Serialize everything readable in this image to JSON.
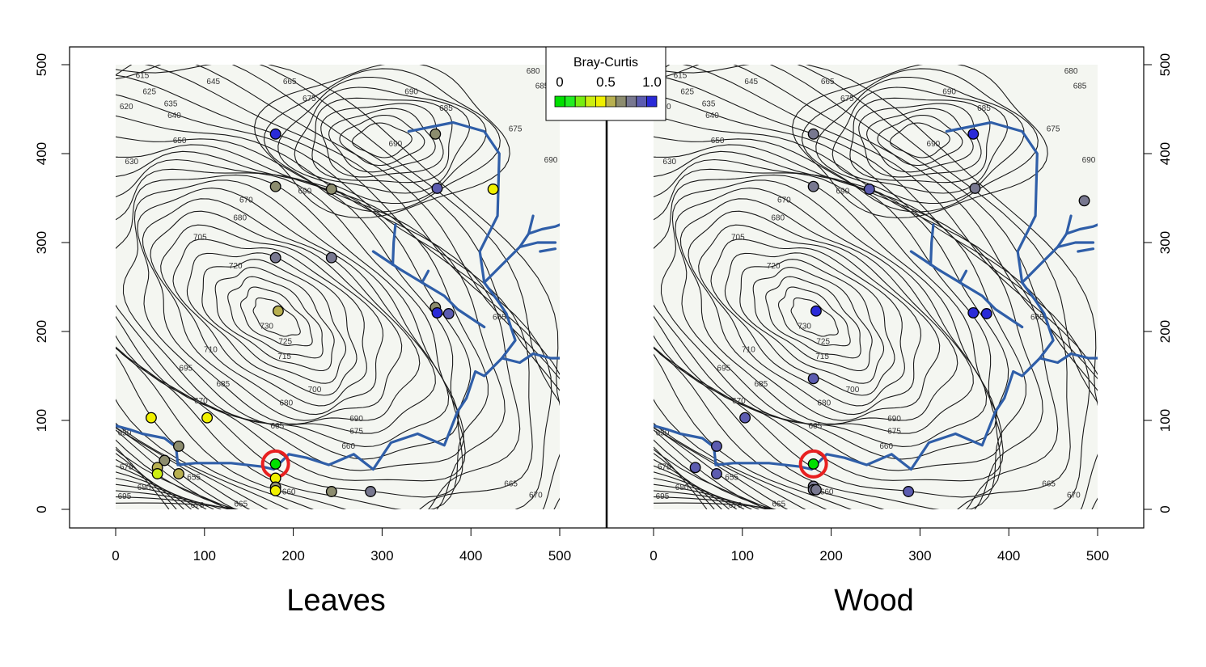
{
  "chart_data": {
    "type": "scatter",
    "xlim": [
      0,
      500
    ],
    "ylim": [
      0,
      500
    ],
    "x_ticks": [
      0,
      100,
      200,
      300,
      400,
      500
    ],
    "y_ticks": [
      0,
      100,
      200,
      300,
      400,
      500
    ],
    "legend": {
      "title": "Bray-Curtis",
      "placement": "top-center",
      "tick_labels": [
        "0",
        "0.5",
        "1.0"
      ],
      "scale_colors": [
        "#00e000",
        "#22ee22",
        "#77ee11",
        "#ccee11",
        "#f0f000",
        "#b8b050",
        "#8c8c6e",
        "#787890",
        "#5c5cb0",
        "#2a2ad8"
      ]
    },
    "highlight": {
      "x": 180,
      "y": 51,
      "ring_color": "#e82020"
    },
    "background_color": "#f4f6f1",
    "stream_color": "#2f5ea8",
    "panels": [
      {
        "title": "Leaves",
        "points": [
          {
            "x": 180,
            "y": 422,
            "v": 0.95
          },
          {
            "x": 360,
            "y": 422,
            "v": 0.6
          },
          {
            "x": 180,
            "y": 363,
            "v": 0.62
          },
          {
            "x": 243,
            "y": 360,
            "v": 0.66
          },
          {
            "x": 362,
            "y": 361,
            "v": 0.88
          },
          {
            "x": 425,
            "y": 360,
            "v": 0.45
          },
          {
            "x": 180,
            "y": 283,
            "v": 0.72
          },
          {
            "x": 243,
            "y": 283,
            "v": 0.78
          },
          {
            "x": 183,
            "y": 223,
            "v": 0.57
          },
          {
            "x": 360,
            "y": 227,
            "v": 0.62
          },
          {
            "x": 362,
            "y": 221,
            "v": 0.92
          },
          {
            "x": 375,
            "y": 220,
            "v": 0.86
          },
          {
            "x": 40,
            "y": 103,
            "v": 0.46
          },
          {
            "x": 103,
            "y": 103,
            "v": 0.46
          },
          {
            "x": 71,
            "y": 71,
            "v": 0.63
          },
          {
            "x": 55,
            "y": 55,
            "v": 0.62
          },
          {
            "x": 47,
            "y": 47,
            "v": 0.58
          },
          {
            "x": 47,
            "y": 40,
            "v": 0.33
          },
          {
            "x": 71,
            "y": 40,
            "v": 0.57
          },
          {
            "x": 180,
            "y": 51,
            "v": 0.05
          },
          {
            "x": 180,
            "y": 35,
            "v": 0.4
          },
          {
            "x": 180,
            "y": 25,
            "v": 0.6
          },
          {
            "x": 180,
            "y": 21,
            "v": 0.47
          },
          {
            "x": 243,
            "y": 20,
            "v": 0.66
          },
          {
            "x": 287,
            "y": 20,
            "v": 0.78
          }
        ]
      },
      {
        "title": "Wood",
        "points": [
          {
            "x": 180,
            "y": 422,
            "v": 0.78
          },
          {
            "x": 360,
            "y": 422,
            "v": 0.95
          },
          {
            "x": 180,
            "y": 363,
            "v": 0.76
          },
          {
            "x": 243,
            "y": 360,
            "v": 0.86
          },
          {
            "x": 362,
            "y": 361,
            "v": 0.78
          },
          {
            "x": 485,
            "y": 347,
            "v": 0.78
          },
          {
            "x": 183,
            "y": 223,
            "v": 0.95
          },
          {
            "x": 360,
            "y": 221,
            "v": 0.95
          },
          {
            "x": 375,
            "y": 220,
            "v": 0.9
          },
          {
            "x": 180,
            "y": 147,
            "v": 0.86
          },
          {
            "x": 103,
            "y": 103,
            "v": 0.86
          },
          {
            "x": 71,
            "y": 71,
            "v": 0.86
          },
          {
            "x": 47,
            "y": 47,
            "v": 0.88
          },
          {
            "x": 71,
            "y": 40,
            "v": 0.82
          },
          {
            "x": 180,
            "y": 51,
            "v": 0.05
          },
          {
            "x": 180,
            "y": 26,
            "v": 0.72
          },
          {
            "x": 180,
            "y": 22,
            "v": 0.72
          },
          {
            "x": 183,
            "y": 22,
            "v": 0.7
          },
          {
            "x": 287,
            "y": 20,
            "v": 0.84
          }
        ]
      }
    ],
    "contour_labels": [
      {
        "text": "615",
        "x": 30,
        "y": 485
      },
      {
        "text": "620",
        "x": 12,
        "y": 450
      },
      {
        "text": "625",
        "x": 38,
        "y": 467
      },
      {
        "text": "630",
        "x": 18,
        "y": 388
      },
      {
        "text": "635",
        "x": 62,
        "y": 453
      },
      {
        "text": "640",
        "x": 66,
        "y": 440
      },
      {
        "text": "645",
        "x": 110,
        "y": 478
      },
      {
        "text": "650",
        "x": 72,
        "y": 412
      },
      {
        "text": "665",
        "x": 196,
        "y": 478
      },
      {
        "text": "670",
        "x": 147,
        "y": 345
      },
      {
        "text": "675",
        "x": 218,
        "y": 459
      },
      {
        "text": "680",
        "x": 140,
        "y": 325
      },
      {
        "text": "685",
        "x": 372,
        "y": 448
      },
      {
        "text": "690",
        "x": 333,
        "y": 467
      },
      {
        "text": "690",
        "x": 315,
        "y": 408
      },
      {
        "text": "690",
        "x": 213,
        "y": 355
      },
      {
        "text": "705",
        "x": 95,
        "y": 303
      },
      {
        "text": "720",
        "x": 135,
        "y": 271
      },
      {
        "text": "730",
        "x": 170,
        "y": 203
      },
      {
        "text": "725",
        "x": 191,
        "y": 186
      },
      {
        "text": "715",
        "x": 190,
        "y": 169
      },
      {
        "text": "710",
        "x": 107,
        "y": 177
      },
      {
        "text": "695",
        "x": 79,
        "y": 156
      },
      {
        "text": "685",
        "x": 121,
        "y": 138
      },
      {
        "text": "700",
        "x": 224,
        "y": 132
      },
      {
        "text": "680",
        "x": 192,
        "y": 117
      },
      {
        "text": "670",
        "x": 96,
        "y": 119
      },
      {
        "text": "690",
        "x": 271,
        "y": 99
      },
      {
        "text": "665",
        "x": 182,
        "y": 91
      },
      {
        "text": "675",
        "x": 271,
        "y": 85
      },
      {
        "text": "660",
        "x": 262,
        "y": 68
      },
      {
        "text": "650",
        "x": 10,
        "y": 83
      },
      {
        "text": "655",
        "x": 88,
        "y": 33
      },
      {
        "text": "675",
        "x": 12,
        "y": 45
      },
      {
        "text": "680",
        "x": 32,
        "y": 22
      },
      {
        "text": "695",
        "x": 10,
        "y": 12
      },
      {
        "text": "670",
        "x": 92,
        "y": 2
      },
      {
        "text": "665",
        "x": 141,
        "y": 3
      },
      {
        "text": "660",
        "x": 195,
        "y": 17
      },
      {
        "text": "665",
        "x": 445,
        "y": 26
      },
      {
        "text": "670",
        "x": 473,
        "y": 13
      },
      {
        "text": "665",
        "x": 432,
        "y": 213
      },
      {
        "text": "675",
        "x": 450,
        "y": 425
      },
      {
        "text": "680",
        "x": 470,
        "y": 490
      },
      {
        "text": "685",
        "x": 480,
        "y": 473
      },
      {
        "text": "690",
        "x": 490,
        "y": 390
      }
    ]
  }
}
